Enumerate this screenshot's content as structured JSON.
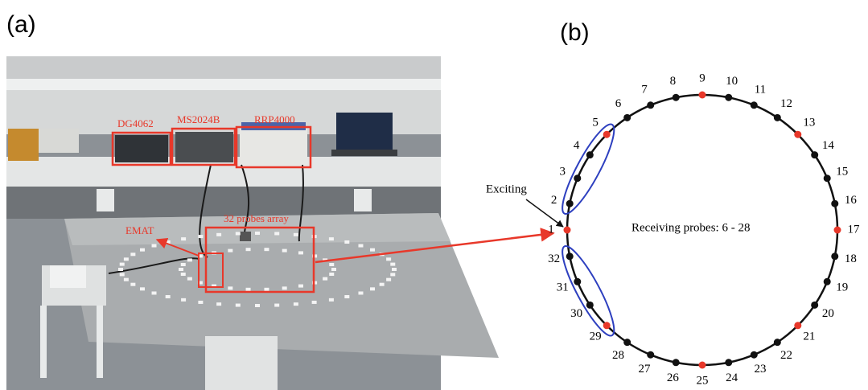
{
  "figure_a": {
    "label": "(a)",
    "instruments": [
      "DG4062",
      "MS2024B",
      "RRP4000"
    ],
    "array_label": "32 probes array",
    "emat_label": "EMAT"
  },
  "figure_b": {
    "label": "(b)",
    "exciting_label": "Exciting",
    "receiving_label": "Receiving probes:  6 - 28",
    "probes": [
      {
        "label": "1",
        "color": "#e8382a"
      },
      {
        "label": "2",
        "color": "#111111"
      },
      {
        "label": "3",
        "color": "#111111"
      },
      {
        "label": "4",
        "color": "#111111"
      },
      {
        "label": "5",
        "color": "#e8382a"
      },
      {
        "label": "6",
        "color": "#111111"
      },
      {
        "label": "7",
        "color": "#111111"
      },
      {
        "label": "8",
        "color": "#111111"
      },
      {
        "label": "9",
        "color": "#e8382a"
      },
      {
        "label": "10",
        "color": "#111111"
      },
      {
        "label": "11",
        "color": "#111111"
      },
      {
        "label": "12",
        "color": "#111111"
      },
      {
        "label": "13",
        "color": "#e8382a"
      },
      {
        "label": "14",
        "color": "#111111"
      },
      {
        "label": "15",
        "color": "#111111"
      },
      {
        "label": "16",
        "color": "#111111"
      },
      {
        "label": "17",
        "color": "#e8382a"
      },
      {
        "label": "18",
        "color": "#111111"
      },
      {
        "label": "19",
        "color": "#111111"
      },
      {
        "label": "20",
        "color": "#111111"
      },
      {
        "label": "21",
        "color": "#e8382a"
      },
      {
        "label": "22",
        "color": "#111111"
      },
      {
        "label": "23",
        "color": "#111111"
      },
      {
        "label": "24",
        "color": "#111111"
      },
      {
        "label": "25",
        "color": "#e8382a"
      },
      {
        "label": "26",
        "color": "#111111"
      },
      {
        "label": "27",
        "color": "#111111"
      },
      {
        "label": "28",
        "color": "#111111"
      },
      {
        "label": "29",
        "color": "#e8382a"
      },
      {
        "label": "30",
        "color": "#111111"
      },
      {
        "label": "31",
        "color": "#111111"
      },
      {
        "label": "32",
        "color": "#111111"
      }
    ]
  }
}
